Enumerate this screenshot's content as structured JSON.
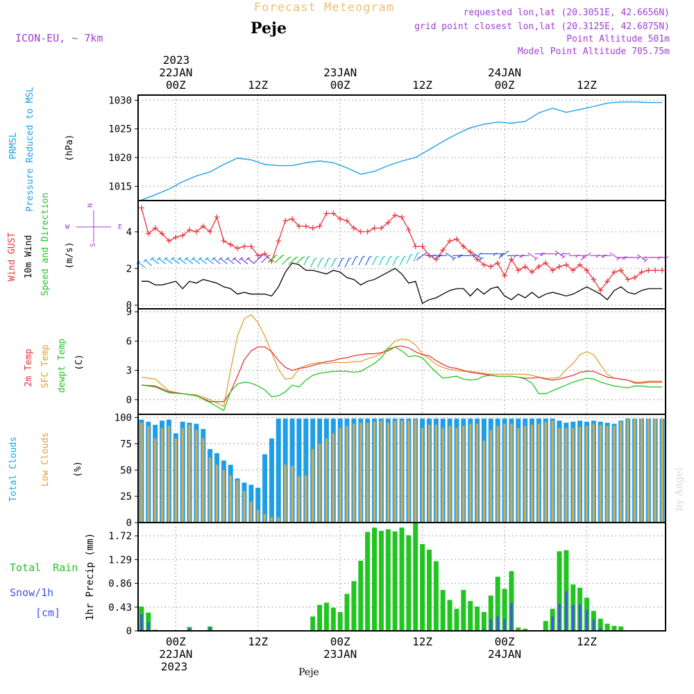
{
  "header": {
    "title": "Forecast Meteogram",
    "location": "Peje",
    "model": "ICON-EU, ~ 7km",
    "requested": "requested lon,lat (20.3051E, 42.6656N)",
    "gridpoint": "grid point closest lon,lat (20.3125E, 42.6875N)",
    "altitude": "Point Altitude 501m",
    "model_altitude": "Model Point Altitude 705.75m",
    "credit": "by Angel",
    "footer": "Peje"
  },
  "time_axis": {
    "top_year": "2023",
    "labels": [
      {
        "t": 0,
        "day": "22JAN",
        "hour": "00Z"
      },
      {
        "t": 12,
        "day": "",
        "hour": "12Z"
      },
      {
        "t": 24,
        "day": "23JAN",
        "hour": "00Z"
      },
      {
        "t": 36,
        "day": "",
        "hour": "12Z"
      },
      {
        "t": 48,
        "day": "24JAN",
        "hour": "00Z"
      },
      {
        "t": 60,
        "day": "",
        "hour": "12Z"
      }
    ],
    "bottom_year": "2023",
    "range_hours": [
      -5.5,
      71.5
    ]
  },
  "colors": {
    "pressure": "#1f9ee8",
    "gust": "#e8333a",
    "wind_speed": "#000000",
    "temp": "#e8333a",
    "sfc_temp": "#e0a030",
    "dewpt": "#22c422",
    "total_cloud": "#1f9ee8",
    "low_cloud": "#d4a850",
    "rain": "#22c422",
    "snow": "#4155e8",
    "header_purple": "#a23dd6",
    "title_orange": "#f0c070"
  },
  "chart_data": [
    {
      "type": "line",
      "name": "pressure",
      "ylabel": "(hPa)",
      "side_labels": [
        "PRMSL",
        "Pressure Reduced to MSL"
      ],
      "yticks": [
        1015,
        1020,
        1025,
        1030
      ],
      "ylim": [
        1012.5,
        1030.9
      ],
      "x": [
        -5,
        -3,
        -1,
        1,
        3,
        5,
        7,
        9,
        11,
        13,
        15,
        17,
        19,
        21,
        23,
        25,
        27,
        29,
        31,
        33,
        35,
        37,
        39,
        41,
        43,
        45,
        47,
        49,
        51,
        53,
        55,
        57,
        59,
        61,
        63,
        65,
        67,
        69,
        71
      ],
      "values": [
        1012.6,
        1013.5,
        1014.5,
        1015.8,
        1016.8,
        1017.5,
        1018.8,
        1019.9,
        1019.6,
        1018.8,
        1018.6,
        1018.6,
        1019.1,
        1019.4,
        1019.1,
        1018.2,
        1017.1,
        1017.6,
        1018.6,
        1019.4,
        1020.0,
        1021.4,
        1022.8,
        1024.1,
        1025.2,
        1025.8,
        1026.2,
        1026.0,
        1026.3,
        1027.8,
        1028.6,
        1027.9,
        1028.4,
        1028.9,
        1029.5,
        1029.7,
        1029.7,
        1029.6,
        1029.6
      ],
      "grid": true
    },
    {
      "type": "line",
      "name": "wind",
      "ylabel": "(m/s)",
      "side_labels": [
        "Wind GUST",
        "10m Wind",
        "Speed and Direction"
      ],
      "compass": {
        "n": "N",
        "s": "S",
        "w": "W",
        "e": "E"
      },
      "yticks": [
        0,
        2,
        4
      ],
      "ylim": [
        -0.2,
        5.7
      ],
      "x": [
        -5,
        -4,
        -3,
        -2,
        -1,
        0,
        1,
        2,
        3,
        4,
        5,
        6,
        7,
        8,
        9,
        10,
        11,
        12,
        13,
        14,
        15,
        16,
        17,
        18,
        19,
        20,
        21,
        22,
        23,
        24,
        25,
        26,
        27,
        28,
        29,
        30,
        31,
        32,
        33,
        34,
        35,
        36,
        37,
        38,
        39,
        40,
        41,
        42,
        43,
        44,
        45,
        46,
        47,
        48,
        49,
        50,
        51,
        52,
        53,
        54,
        55,
        56,
        57,
        58,
        59,
        60,
        61,
        62,
        63,
        64,
        65,
        66,
        67,
        68,
        69,
        70,
        71
      ],
      "gust": [
        5.3,
        3.9,
        4.2,
        3.9,
        3.5,
        3.7,
        3.8,
        4.1,
        4.0,
        4.3,
        4.0,
        4.8,
        3.5,
        3.3,
        3.1,
        3.2,
        3.2,
        2.7,
        2.8,
        2.4,
        3.5,
        4.6,
        4.7,
        4.3,
        4.3,
        4.2,
        4.3,
        5.0,
        5.0,
        4.7,
        4.6,
        4.2,
        4.0,
        4.0,
        4.2,
        4.2,
        4.5,
        4.9,
        4.8,
        4.1,
        3.2,
        3.2,
        2.7,
        2.5,
        3.0,
        3.5,
        3.6,
        3.2,
        2.9,
        2.5,
        2.2,
        2.1,
        2.3,
        1.6,
        2.5,
        1.9,
        2.1,
        1.8,
        2.1,
        2.3,
        1.9,
        2.1,
        2.2,
        1.9,
        2.2,
        1.9,
        1.4,
        0.8,
        1.3,
        1.8,
        1.9,
        1.4,
        1.5,
        1.8,
        1.9,
        1.9,
        1.9
      ],
      "speed": [
        1.3,
        1.3,
        1.1,
        1.1,
        1.2,
        1.3,
        0.9,
        1.3,
        1.2,
        1.4,
        1.3,
        1.2,
        1.0,
        0.9,
        0.6,
        0.7,
        0.6,
        0.6,
        0.6,
        0.5,
        1.0,
        1.8,
        2.3,
        2.2,
        1.9,
        1.9,
        1.8,
        1.7,
        1.9,
        1.8,
        1.5,
        1.4,
        1.1,
        1.3,
        1.4,
        1.6,
        1.8,
        2.0,
        1.7,
        1.2,
        1.3,
        0.1,
        0.3,
        0.4,
        0.6,
        0.8,
        0.9,
        0.9,
        0.5,
        0.9,
        0.6,
        0.9,
        1.0,
        0.5,
        0.3,
        0.6,
        0.4,
        0.7,
        0.4,
        0.6,
        0.7,
        0.6,
        0.5,
        0.6,
        0.8,
        1.0,
        0.8,
        0.6,
        0.3,
        0.8,
        1.0,
        0.7,
        0.6,
        0.8,
        0.9,
        0.9,
        0.9
      ],
      "arrow_y": [
        2.2,
        2.3,
        2.4,
        2.4,
        2.4,
        2.4,
        2.4,
        2.4,
        2.4,
        2.4,
        2.4,
        2.4,
        2.4,
        2.4,
        2.4,
        2.4,
        2.4,
        2.5,
        2.5,
        2.5,
        2.5,
        2.4,
        2.4,
        2.4,
        2.4,
        2.3,
        2.3,
        2.3,
        2.3,
        2.3,
        2.3,
        2.4,
        2.4,
        2.4,
        2.4,
        2.4,
        2.4,
        2.4,
        2.4,
        2.5,
        2.6,
        2.7,
        2.7,
        2.7,
        2.7,
        2.7,
        2.7,
        2.7,
        2.7,
        2.7,
        2.8,
        2.8,
        2.8,
        2.8,
        2.7,
        2.7,
        2.7,
        2.7,
        2.8,
        2.8,
        2.8,
        2.8,
        2.8,
        2.7,
        2.7,
        2.7,
        2.7,
        2.7,
        2.7,
        2.7,
        2.6,
        2.6,
        2.6,
        2.6,
        2.6,
        2.6,
        2.6
      ],
      "grid": true
    },
    {
      "type": "line",
      "name": "temperature",
      "ylabel": "(C)",
      "side_labels": [
        "2m Temp",
        "SFC Temp",
        "dewpt Temp"
      ],
      "yticks": [
        0,
        3,
        6,
        9
      ],
      "ylim": [
        -1.5,
        9.3
      ],
      "x": [
        -5,
        -3,
        -1,
        1,
        3,
        5,
        7,
        8,
        9,
        10,
        11,
        12,
        13,
        14,
        15,
        16,
        17,
        18,
        19,
        20,
        21,
        22,
        23,
        24,
        25,
        26,
        27,
        28,
        29,
        30,
        31,
        32,
        33,
        34,
        35,
        36,
        37,
        38,
        39,
        40,
        41,
        42,
        43,
        44,
        45,
        46,
        47,
        48,
        49,
        50,
        51,
        52,
        53,
        54,
        55,
        56,
        57,
        58,
        59,
        60,
        61,
        62,
        63,
        64,
        65,
        66,
        67,
        68,
        69,
        70,
        71
      ],
      "temp": [
        1.5,
        1.4,
        0.8,
        0.6,
        0.4,
        -0.2,
        -0.2,
        0.8,
        2.4,
        4.1,
        5.0,
        5.4,
        5.4,
        4.9,
        4.0,
        3.3,
        3.0,
        3.2,
        3.3,
        3.5,
        3.7,
        3.9,
        4.0,
        4.2,
        4.3,
        4.5,
        4.6,
        4.7,
        4.7,
        4.8,
        5.0,
        5.4,
        5.5,
        5.3,
        4.9,
        4.6,
        4.5,
        4.0,
        3.6,
        3.3,
        3.2,
        3.0,
        2.8,
        2.7,
        2.6,
        2.5,
        2.4,
        2.4,
        2.4,
        2.3,
        2.2,
        2.2,
        2.3,
        2.1,
        2.0,
        2.1,
        2.3,
        2.5,
        2.8,
        2.9,
        2.9,
        2.6,
        2.3,
        2.2,
        2.1,
        2.0,
        1.7,
        1.7,
        1.8,
        1.8,
        1.8
      ],
      "sfc": [
        2.3,
        2.1,
        0.9,
        0.6,
        0.5,
        0.0,
        -0.7,
        3.0,
        6.5,
        8.3,
        8.7,
        7.9,
        6.5,
        4.8,
        3.1,
        2.1,
        2.2,
        3.2,
        3.5,
        3.7,
        3.8,
        3.7,
        3.8,
        3.8,
        3.8,
        3.9,
        3.9,
        4.2,
        4.4,
        4.7,
        5.3,
        6.0,
        6.2,
        6.1,
        5.6,
        4.7,
        4.2,
        3.6,
        3.3,
        3.1,
        3.0,
        2.9,
        2.9,
        2.8,
        2.7,
        2.6,
        2.6,
        2.6,
        2.6,
        2.6,
        2.6,
        2.5,
        2.3,
        2.2,
        2.2,
        2.3,
        3.1,
        3.7,
        4.6,
        4.9,
        4.6,
        3.6,
        2.6,
        2.2,
        2.1,
        2.0,
        1.8,
        1.8,
        1.9,
        1.9,
        1.9
      ],
      "dewpt": [
        1.5,
        1.3,
        0.7,
        0.6,
        0.4,
        -0.3,
        -1.1,
        0.8,
        1.6,
        1.8,
        1.7,
        1.4,
        1.0,
        0.3,
        0.4,
        0.8,
        1.5,
        1.3,
        2.0,
        2.5,
        2.7,
        2.8,
        2.9,
        2.9,
        2.9,
        2.8,
        2.9,
        3.3,
        3.7,
        4.3,
        5.2,
        5.4,
        5.0,
        4.4,
        4.5,
        4.3,
        3.5,
        2.8,
        2.2,
        2.3,
        2.4,
        2.1,
        2.0,
        2.1,
        2.4,
        2.5,
        2.4,
        2.4,
        2.4,
        2.3,
        2.1,
        1.7,
        0.6,
        0.6,
        0.9,
        1.2,
        1.5,
        1.8,
        2.0,
        2.2,
        2.1,
        1.8,
        1.6,
        1.4,
        1.3,
        1.2,
        1.4,
        1.4,
        1.3,
        1.3,
        1.3
      ],
      "grid": true
    },
    {
      "type": "bar",
      "name": "clouds",
      "ylabel": "(%)",
      "side_labels": [
        "Total Clouds",
        "Low Clouds"
      ],
      "yticks": [
        0,
        25,
        50,
        75,
        100
      ],
      "ylim": [
        0,
        103
      ],
      "x": [
        -5,
        -4,
        -3,
        -2,
        -1,
        0,
        1,
        2,
        3,
        4,
        5,
        6,
        7,
        8,
        9,
        10,
        11,
        12,
        13,
        14,
        15,
        16,
        17,
        18,
        19,
        20,
        21,
        22,
        23,
        24,
        25,
        26,
        27,
        28,
        29,
        30,
        31,
        32,
        33,
        34,
        35,
        36,
        37,
        38,
        39,
        40,
        41,
        42,
        43,
        44,
        45,
        46,
        47,
        48,
        49,
        50,
        51,
        52,
        53,
        54,
        55,
        56,
        57,
        58,
        59,
        60,
        61,
        62,
        63,
        64,
        65,
        66,
        67,
        68,
        69,
        70,
        71
      ],
      "total": [
        98,
        96,
        93,
        97,
        98,
        85,
        96,
        95,
        94,
        89,
        70,
        66,
        59,
        55,
        42,
        38,
        36,
        33,
        65,
        80,
        99,
        99,
        99,
        99,
        99,
        99,
        99,
        99,
        99,
        99,
        99,
        99,
        99,
        99,
        99,
        99,
        99,
        99,
        99,
        99,
        99,
        99,
        99,
        99,
        99,
        99,
        99,
        99,
        99,
        99,
        99,
        99,
        99,
        99,
        99,
        99,
        99,
        99,
        99,
        99,
        99,
        97,
        95,
        96,
        97,
        96,
        97,
        96,
        95,
        94,
        97,
        99,
        99,
        99,
        99,
        99,
        99
      ],
      "low": [
        95,
        92,
        80,
        90,
        92,
        80,
        90,
        93,
        88,
        80,
        62,
        55,
        50,
        45,
        40,
        30,
        20,
        12,
        8,
        5,
        5,
        55,
        54,
        44,
        45,
        70,
        75,
        80,
        85,
        90,
        92,
        94,
        95,
        95,
        96,
        97,
        95,
        97,
        97,
        97,
        98,
        90,
        93,
        93,
        90,
        92,
        90,
        92,
        94,
        94,
        78,
        88,
        92,
        94,
        94,
        90,
        92,
        93,
        94,
        96,
        97,
        90,
        90,
        90,
        91,
        92,
        94,
        93,
        92,
        92,
        96,
        98,
        99,
        99,
        99,
        99,
        99
      ],
      "grid": true
    },
    {
      "type": "bar",
      "name": "precip",
      "ylabel": "1hr Precip (mm)",
      "side_labels": [
        "Total Rain",
        "Snow/1h",
        "[cm]"
      ],
      "yticks": [
        0,
        0.43,
        0.86,
        1.29,
        1.72
      ],
      "ylim": [
        0,
        1.96
      ],
      "x": [
        -5,
        -4,
        -3,
        -2,
        -1,
        0,
        1,
        2,
        3,
        4,
        5,
        6,
        7,
        8,
        9,
        10,
        11,
        12,
        13,
        14,
        15,
        16,
        17,
        18,
        19,
        20,
        21,
        22,
        23,
        24,
        25,
        26,
        27,
        28,
        29,
        30,
        31,
        32,
        33,
        34,
        35,
        36,
        37,
        38,
        39,
        40,
        41,
        42,
        43,
        44,
        45,
        46,
        47,
        48,
        49,
        50,
        51,
        52,
        53,
        54,
        55,
        56,
        57,
        58,
        59,
        60,
        61,
        62,
        63,
        64,
        65,
        66,
        67,
        68,
        69,
        70,
        71
      ],
      "rain": [
        0.44,
        0.33,
        0.02,
        0,
        0,
        0,
        0,
        0.07,
        0,
        0,
        0.08,
        0,
        0,
        0,
        0,
        0,
        0,
        0,
        0,
        0,
        0,
        0,
        0,
        0,
        0,
        0.26,
        0.47,
        0.51,
        0.42,
        0.34,
        0.67,
        0.9,
        1.27,
        1.79,
        1.87,
        1.81,
        1.84,
        1.8,
        1.87,
        1.73,
        1.96,
        1.57,
        1.47,
        1.26,
        0.74,
        0.56,
        0.4,
        0.74,
        0.54,
        0.44,
        0.34,
        0.64,
        0.98,
        0.76,
        1.08,
        0.06,
        0.04,
        0,
        0,
        0.18,
        0.4,
        1.44,
        1.46,
        0.84,
        0.78,
        0.6,
        0.36,
        0.22,
        0.13,
        0.09,
        0.08,
        0,
        0,
        0,
        0,
        0,
        0
      ],
      "snow": [
        0.3,
        0.16,
        0,
        0,
        0,
        0,
        0,
        0.05,
        0,
        0,
        0.06,
        0,
        0,
        0,
        0,
        0,
        0,
        0,
        0,
        0,
        0,
        0,
        0,
        0,
        0,
        0,
        0,
        0,
        0,
        0,
        0,
        0,
        0,
        0,
        0,
        0,
        0,
        0,
        0,
        0,
        0,
        0,
        0,
        0,
        0,
        0,
        0,
        0,
        0,
        0,
        0.03,
        0.21,
        0.26,
        0.21,
        0.5,
        0,
        0,
        0,
        0,
        0,
        0.26,
        0.49,
        0.72,
        0.47,
        0.48,
        0.38,
        0.2,
        0.05,
        0,
        0,
        0,
        0,
        0,
        0,
        0,
        0,
        0
      ],
      "grid": true
    }
  ]
}
